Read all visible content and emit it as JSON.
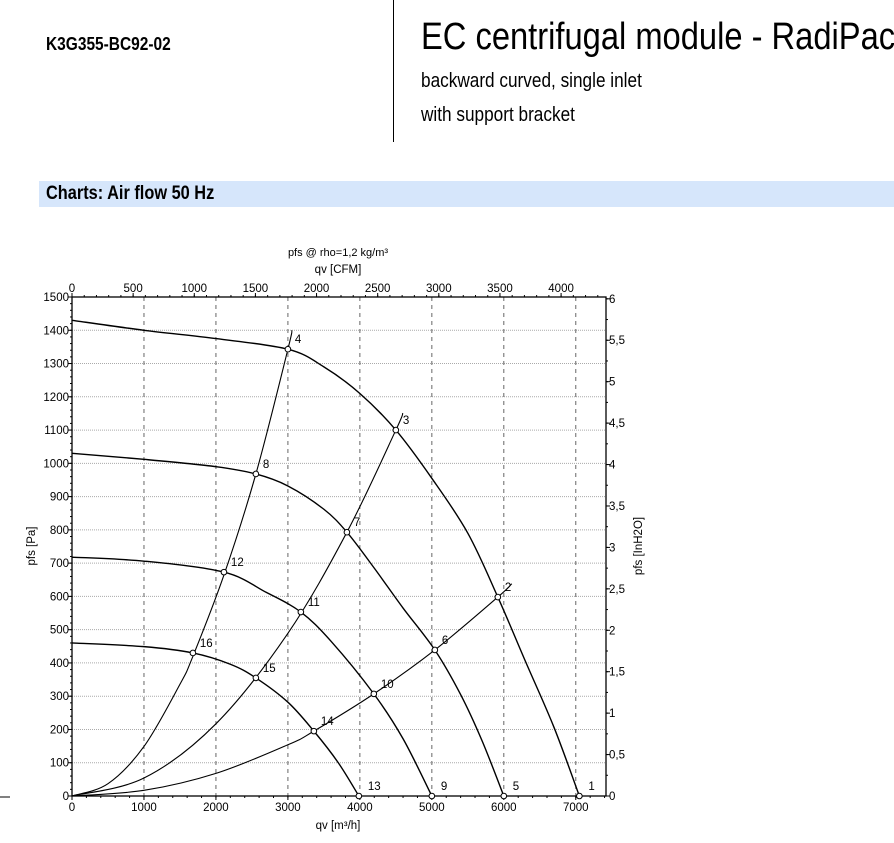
{
  "header": {
    "model": "K3G355-BC92-02",
    "title": "EC centrifugal module - RadiPac",
    "subtitle_1": "backward curved, single inlet",
    "subtitle_2": "with support bracket"
  },
  "section": {
    "title": "Charts: Air flow 50 Hz"
  },
  "chart_data": {
    "type": "line",
    "title": "pfs @ rho=1,2 kg/m³",
    "xlabel": "qv [m³/h]",
    "ylabel": "pfs [Pa]",
    "x2label": "qv [CFM]",
    "y2label": "pfs [InH2O]",
    "xlim": [
      0,
      7420
    ],
    "ylim": [
      0,
      1500
    ],
    "xticks": [
      0,
      1000,
      2000,
      3000,
      4000,
      5000,
      6000,
      7000
    ],
    "yticks": [
      0,
      100,
      200,
      300,
      400,
      500,
      600,
      700,
      800,
      900,
      1000,
      1100,
      1200,
      1300,
      1400,
      1500
    ],
    "x2ticks": [
      0,
      500,
      1000,
      1500,
      2000,
      2500,
      3000,
      3500,
      4000
    ],
    "y2ticks": [
      "0",
      "0,5",
      "1",
      "1,5",
      "2",
      "2,5",
      "3",
      "3,5",
      "4",
      "4,5",
      "5",
      "5,5",
      "6"
    ],
    "y2ticks_values": [
      0,
      0.5,
      1,
      1.5,
      2,
      2.5,
      3,
      3.5,
      4,
      4.5,
      5,
      5.5,
      6
    ],
    "grid": true,
    "fan_curves": [
      {
        "points": [
          [
            0,
            1430
          ],
          [
            1000,
            1400
          ],
          [
            2000,
            1375
          ],
          [
            3000,
            1343
          ],
          [
            3500,
            1290
          ],
          [
            4000,
            1210
          ],
          [
            4500,
            1100
          ],
          [
            5000,
            955
          ],
          [
            5500,
            790
          ],
          [
            5917,
            598
          ],
          [
            6300,
            405
          ],
          [
            6700,
            205
          ],
          [
            7050,
            0
          ]
        ]
      },
      {
        "points": [
          [
            0,
            1030
          ],
          [
            1000,
            1012
          ],
          [
            2000,
            990
          ],
          [
            2555,
            968
          ],
          [
            3000,
            932
          ],
          [
            3500,
            862
          ],
          [
            3820,
            793
          ],
          [
            4200,
            685
          ],
          [
            4600,
            565
          ],
          [
            5042,
            439
          ],
          [
            5400,
            305
          ],
          [
            5700,
            165
          ],
          [
            6000,
            0
          ]
        ]
      },
      {
        "points": [
          [
            0,
            718
          ],
          [
            1000,
            706
          ],
          [
            2111,
            673
          ],
          [
            2700,
            612
          ],
          [
            3180,
            553
          ],
          [
            3600,
            465
          ],
          [
            4194,
            307
          ],
          [
            4600,
            172
          ],
          [
            5000,
            0
          ]
        ]
      },
      {
        "points": [
          [
            0,
            460
          ],
          [
            1000,
            449
          ],
          [
            1680,
            430
          ],
          [
            2200,
            396
          ],
          [
            2555,
            355
          ],
          [
            3000,
            282
          ],
          [
            3361,
            195
          ],
          [
            3700,
            100
          ],
          [
            3986,
            0
          ]
        ]
      }
    ],
    "system_curves": [
      {
        "points": [
          [
            0,
            0
          ],
          [
            500,
            37
          ],
          [
            1000,
            149
          ],
          [
            1500,
            336
          ],
          [
            1680,
            420
          ],
          [
            2111,
            664
          ],
          [
            2555,
            968
          ],
          [
            3000,
            1343
          ],
          [
            3055,
            1400
          ]
        ]
      },
      {
        "points": [
          [
            0,
            0
          ],
          [
            1000,
            54
          ],
          [
            2000,
            217
          ],
          [
            3000,
            489
          ],
          [
            3820,
            793
          ],
          [
            4500,
            1100
          ],
          [
            4597,
            1151
          ]
        ]
      },
      {
        "points": [
          [
            0,
            0
          ],
          [
            1000,
            17
          ],
          [
            2000,
            68
          ],
          [
            3000,
            154
          ],
          [
            3361,
            195
          ],
          [
            4194,
            307
          ],
          [
            5042,
            439
          ],
          [
            5917,
            598
          ],
          [
            6111,
            638
          ]
        ]
      }
    ],
    "operating_points": [
      {
        "label": "1",
        "x": 7050,
        "y": 0
      },
      {
        "label": "2",
        "x": 5917,
        "y": 598
      },
      {
        "label": "3",
        "x": 4500,
        "y": 1100
      },
      {
        "label": "4",
        "x": 3000,
        "y": 1343
      },
      {
        "label": "5",
        "x": 6000,
        "y": 0
      },
      {
        "label": "6",
        "x": 5042,
        "y": 439
      },
      {
        "label": "7",
        "x": 3820,
        "y": 793
      },
      {
        "label": "8",
        "x": 2555,
        "y": 968
      },
      {
        "label": "9",
        "x": 5000,
        "y": 0
      },
      {
        "label": "10",
        "x": 4194,
        "y": 307
      },
      {
        "label": "11",
        "x": 3180,
        "y": 553
      },
      {
        "label": "12",
        "x": 2111,
        "y": 673
      },
      {
        "label": "13",
        "x": 3986,
        "y": 0
      },
      {
        "label": "14",
        "x": 3361,
        "y": 195
      },
      {
        "label": "15",
        "x": 2555,
        "y": 355
      },
      {
        "label": "16",
        "x": 1680,
        "y": 430
      }
    ]
  }
}
